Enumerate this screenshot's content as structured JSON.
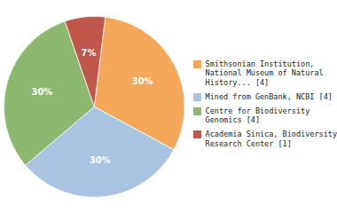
{
  "chart_data": {
    "type": "pie",
    "categories": [
      "Smithsonian Institution,\nNational Museum of Natural\nHistory... [4]",
      "Mined from GenBank, NCBI [4]",
      "Centre for Biodiversity\nGenomics [4]",
      "Academia Sinica, Biodiversity\nResearch Center [1]"
    ],
    "values": [
      30,
      30,
      30,
      7
    ],
    "value_labels": [
      "30%",
      "30%",
      "30%",
      "7%"
    ],
    "colors": [
      "#F5A85A",
      "#A8C4E0",
      "#8DB870",
      "#C0574A"
    ],
    "data_labels": true,
    "legend": "right"
  }
}
